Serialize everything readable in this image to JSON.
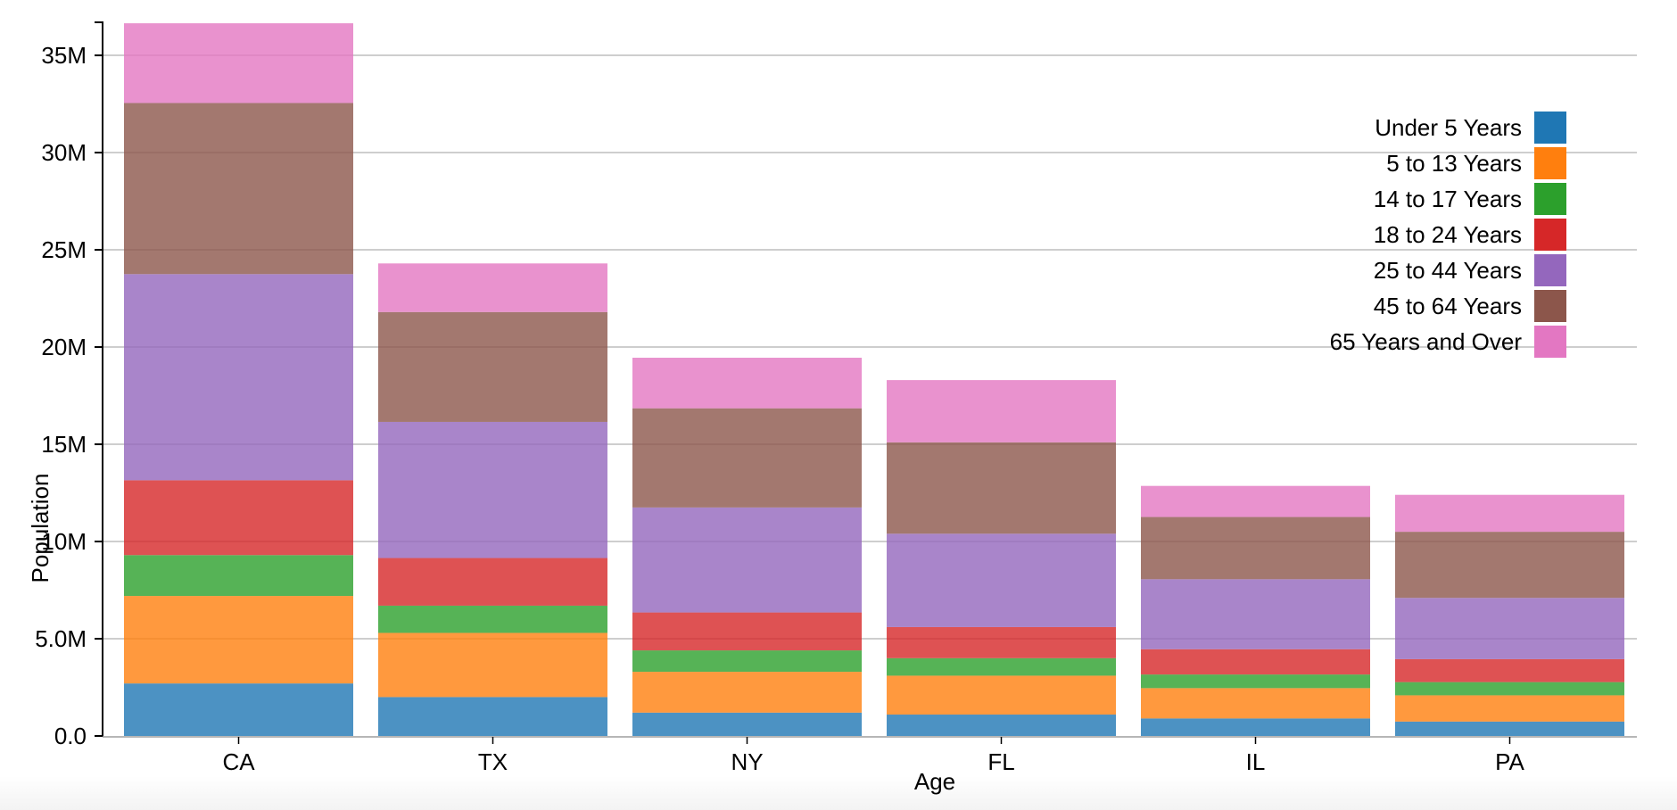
{
  "chart_data": {
    "type": "bar",
    "stacked": true,
    "xlabel": "Age",
    "ylabel": "Population",
    "ylim": [
      0,
      36700000
    ],
    "yticks": [
      {
        "value": 0,
        "label": "0.0"
      },
      {
        "value": 5000000,
        "label": "5.0M"
      },
      {
        "value": 10000000,
        "label": "10M"
      },
      {
        "value": 15000000,
        "label": "15M"
      },
      {
        "value": 20000000,
        "label": "20M"
      },
      {
        "value": 25000000,
        "label": "25M"
      },
      {
        "value": 30000000,
        "label": "30M"
      },
      {
        "value": 35000000,
        "label": "35M"
      }
    ],
    "categories": [
      "CA",
      "TX",
      "NY",
      "FL",
      "IL",
      "PA"
    ],
    "series": [
      {
        "name": "Under 5 Years",
        "color": "#1f77b4",
        "values": [
          2700000,
          2000000,
          1200000,
          1100000,
          900000,
          740000
        ]
      },
      {
        "name": "5 to 13 Years",
        "color": "#ff7f0e",
        "values": [
          4500000,
          3300000,
          2100000,
          2000000,
          1560000,
          1350000
        ]
      },
      {
        "name": "14 to 17 Years",
        "color": "#2ca02c",
        "values": [
          2100000,
          1400000,
          1100000,
          900000,
          700000,
          680000
        ]
      },
      {
        "name": "18 to 24 Years",
        "color": "#d62728",
        "values": [
          3850000,
          2450000,
          1950000,
          1600000,
          1300000,
          1180000
        ]
      },
      {
        "name": "25 to 44 Years",
        "color": "#9467bd",
        "values": [
          10600000,
          7000000,
          5400000,
          4800000,
          3600000,
          3150000
        ]
      },
      {
        "name": "45 to 64 Years",
        "color": "#8c564b",
        "values": [
          8800000,
          5650000,
          5100000,
          4700000,
          3200000,
          3400000
        ]
      },
      {
        "name": "65 Years and Over",
        "color": "#e377c2",
        "values": [
          4100000,
          2500000,
          2600000,
          3200000,
          1600000,
          1900000
        ]
      }
    ],
    "grid": true,
    "legend_position": "top-right"
  }
}
